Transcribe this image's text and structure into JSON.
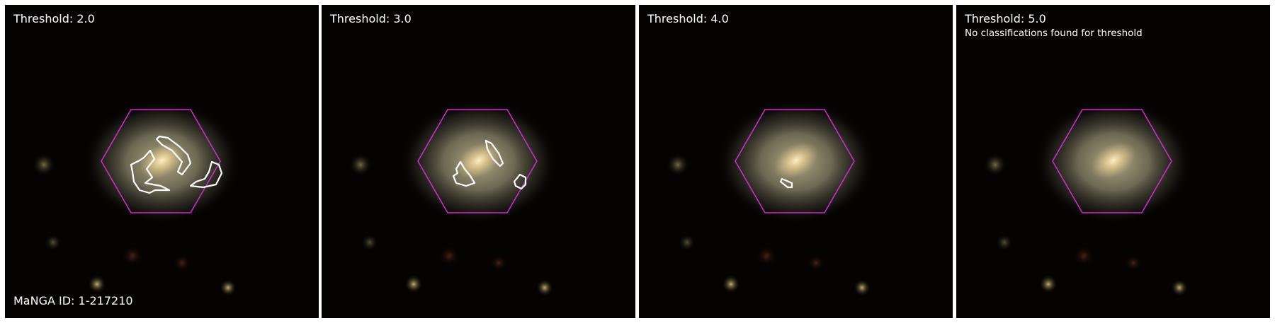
{
  "manga_id": "MaNGA ID: 1-217210",
  "colors": {
    "hexagon": "#d42cd4",
    "contour": "#ffffff",
    "background": "#050302"
  },
  "panels": [
    {
      "threshold_label": "Threshold: 2.0",
      "message": ""
    },
    {
      "threshold_label": "Threshold: 3.0",
      "message": ""
    },
    {
      "threshold_label": "Threshold: 4.0",
      "message": ""
    },
    {
      "threshold_label": "Threshold: 5.0",
      "message": "No classifications found for threshold"
    }
  ]
}
